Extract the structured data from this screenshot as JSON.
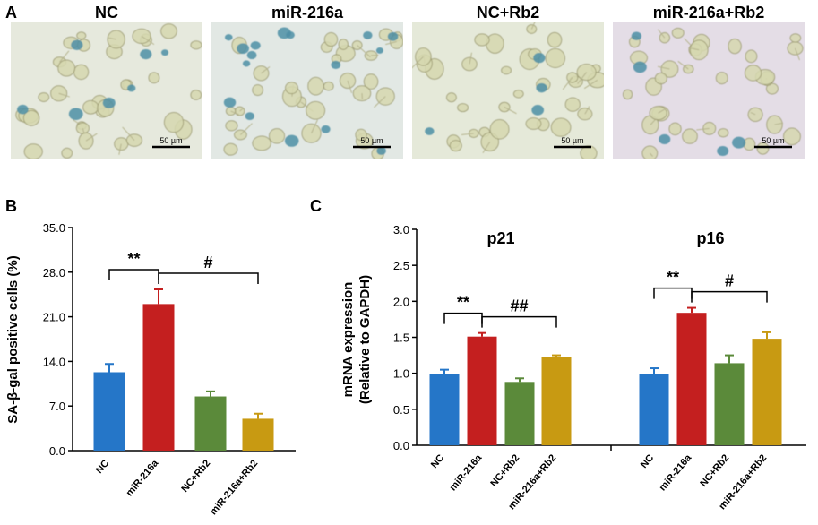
{
  "panel_a": {
    "letter": "A",
    "images": [
      {
        "title": "NC",
        "scale_bar": "50 µm",
        "tint": "#e6e9dd",
        "blue_cells": 7,
        "seed": 11
      },
      {
        "title": "miR-216a",
        "scale_bar": "50 µm",
        "tint": "#e2e8e4",
        "blue_cells": 16,
        "seed": 23
      },
      {
        "title": "NC+Rb2",
        "scale_bar": "50 µm",
        "tint": "#e5e9d9",
        "blue_cells": 4,
        "seed": 37
      },
      {
        "title": "miR-216a+Rb2",
        "scale_bar": "50 µm",
        "tint": "#e4dde6",
        "blue_cells": 5,
        "seed": 53
      }
    ]
  },
  "panel_b": {
    "letter": "B"
  },
  "panel_c": {
    "letter": "C"
  },
  "colors": {
    "NC": "#2576c8",
    "miR-216a": "#c41f1f",
    "NC+Rb2": "#5b8a3a",
    "miR-216a+Rb2": "#c89a12"
  },
  "chart_data": [
    {
      "type": "bar",
      "categories": [
        "NC",
        "miR-216a",
        "NC+Rb2",
        "miR-216a+Rb2"
      ],
      "values": [
        12.3,
        23.0,
        8.5,
        5.0
      ],
      "errors": [
        1.3,
        2.3,
        0.8,
        0.8
      ],
      "ylabel": "SA-β-gal positive cells (%)",
      "ylim": [
        0,
        35
      ],
      "yticks": [
        "0.0",
        "7.0",
        "14.0",
        "21.0",
        "28.0",
        "35.0"
      ],
      "significance": [
        {
          "from": 0,
          "to": 1,
          "label": "**"
        },
        {
          "from": 1,
          "to": 3,
          "label": "#"
        }
      ]
    },
    {
      "type": "bar",
      "ylabel": "mRNA expression",
      "ylabel2": "(Relative to GAPDH)",
      "ylim": [
        0,
        3.0
      ],
      "yticks": [
        "0.0",
        "0.5",
        "1.0",
        "1.5",
        "2.0",
        "2.5",
        "3.0"
      ],
      "groups": [
        {
          "name": "p21",
          "categories": [
            "NC",
            "miR-216a",
            "NC+Rb2",
            "miR-216a+Rb2"
          ],
          "values": [
            0.99,
            1.51,
            0.88,
            1.23
          ],
          "errors": [
            0.06,
            0.05,
            0.05,
            0.02
          ],
          "significance": [
            {
              "from": 0,
              "to": 1,
              "label": "**"
            },
            {
              "from": 1,
              "to": 3,
              "label": "##"
            }
          ]
        },
        {
          "name": "p16",
          "categories": [
            "NC",
            "miR-216a",
            "NC+Rb2",
            "miR-216a+Rb2"
          ],
          "values": [
            0.99,
            1.84,
            1.14,
            1.48
          ],
          "errors": [
            0.08,
            0.07,
            0.11,
            0.09
          ],
          "significance": [
            {
              "from": 0,
              "to": 1,
              "label": "**"
            },
            {
              "from": 1,
              "to": 3,
              "label": "#"
            }
          ]
        }
      ]
    }
  ]
}
